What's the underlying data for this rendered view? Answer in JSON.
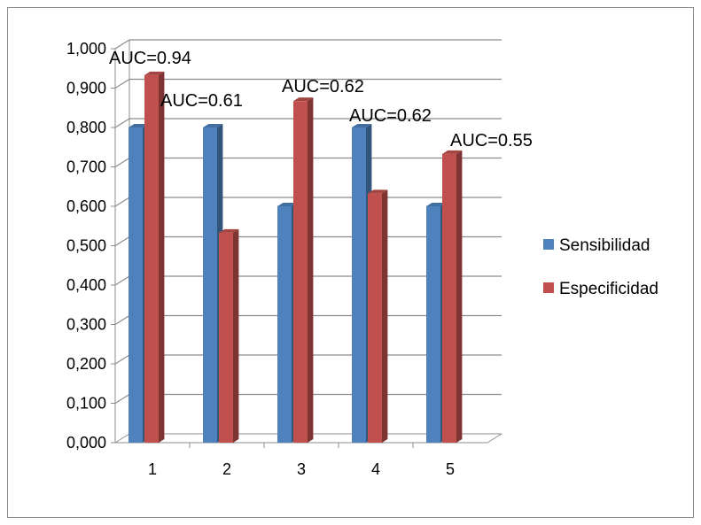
{
  "chart_data": {
    "type": "bar",
    "categories": [
      "1",
      "2",
      "3",
      "4",
      "5"
    ],
    "series": [
      {
        "name": "Sensibilidad",
        "color": "#4F81BD",
        "values": [
          0.8,
          0.8,
          0.6,
          0.8,
          0.6
        ]
      },
      {
        "name": "Especificidad",
        "color": "#C0504D",
        "values": [
          0.933,
          0.533,
          0.867,
          0.633,
          0.733
        ]
      }
    ],
    "annotations": [
      "AUC=0.94",
      "AUC=0.61",
      "AUC=0.62",
      "AUC=0.62",
      "AUC=0.55"
    ],
    "y_ticks": [
      "0,000",
      "0,100",
      "0,200",
      "0,300",
      "0,400",
      "0,500",
      "0,600",
      "0,700",
      "0,800",
      "0,900",
      "1,000"
    ],
    "ylim": [
      0,
      1
    ],
    "grid": true,
    "legend_position": "right",
    "title": "",
    "xlabel": "",
    "ylabel": ""
  }
}
